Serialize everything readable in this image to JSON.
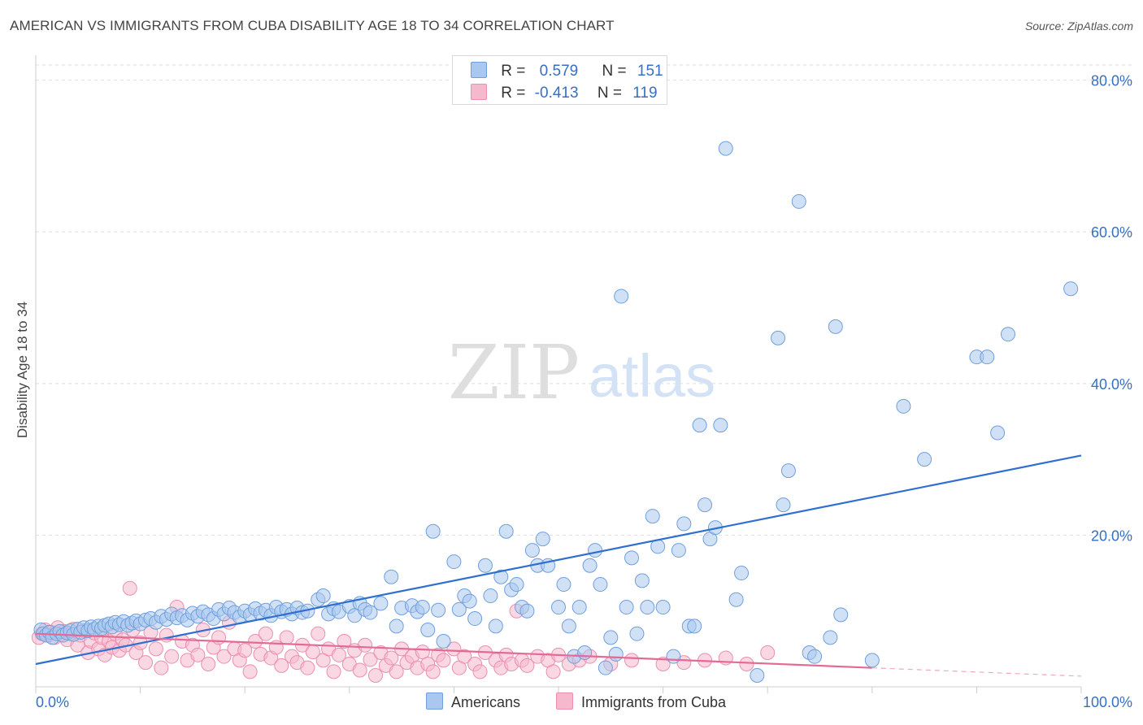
{
  "title": "AMERICAN VS IMMIGRANTS FROM CUBA DISABILITY AGE 18 TO 34 CORRELATION CHART",
  "source": "Source: ZipAtlas.com",
  "watermark": {
    "zip": "ZIP",
    "atlas": "atlas"
  },
  "stats": [
    {
      "r_label": "R =",
      "r_value": "0.579",
      "n_label": "N =",
      "n_value": "151"
    },
    {
      "r_label": "R =",
      "r_value": "-0.413",
      "n_label": "N =",
      "n_value": "119"
    }
  ],
  "legend": [
    {
      "label": "Americans"
    },
    {
      "label": "Immigrants from Cuba"
    }
  ],
  "colors": {
    "americans_fill": "#aac8ef",
    "americans_stroke": "#6f9fdd",
    "americans_line": "#2f6fcf",
    "cuba_fill": "#f6b8cc",
    "cuba_stroke": "#ea8fae",
    "cuba_line": "#e46a96",
    "axis_text": "#3570c4",
    "grid": "#dddddd"
  },
  "chart_data": {
    "type": "scatter",
    "title": "AMERICAN VS IMMIGRANTS FROM CUBA DISABILITY AGE 18 TO 34 CORRELATION CHART",
    "xlabel": "",
    "ylabel": "Disability Age 18 to 34",
    "xlim": [
      0,
      100
    ],
    "ylim": [
      0,
      82
    ],
    "x_tick_labels": [
      {
        "value": 0,
        "label": "0.0%"
      },
      {
        "value": 100,
        "label": "100.0%"
      }
    ],
    "y_tick_labels": [
      {
        "value": 20,
        "label": "20.0%"
      },
      {
        "value": 40,
        "label": "40.0%"
      },
      {
        "value": 60,
        "label": "60.0%"
      },
      {
        "value": 80,
        "label": "80.0%"
      }
    ],
    "grid": true,
    "legend_position": "bottom",
    "series": [
      {
        "name": "Americans",
        "r": 0.579,
        "n": 151,
        "trend": {
          "x": [
            0,
            100
          ],
          "y": [
            3.0,
            30.5
          ]
        },
        "points": [
          [
            0.5,
            7.5
          ],
          [
            0.7,
            7.0
          ],
          [
            1,
            6.8
          ],
          [
            1.3,
            7.2
          ],
          [
            1.6,
            6.5
          ],
          [
            2,
            7.0
          ],
          [
            2.3,
            7.3
          ],
          [
            2.6,
            6.8
          ],
          [
            3,
            7.1
          ],
          [
            3.3,
            7.4
          ],
          [
            3.6,
            6.9
          ],
          [
            4,
            7.6
          ],
          [
            4.3,
            7.2
          ],
          [
            4.6,
            7.8
          ],
          [
            5,
            7.4
          ],
          [
            5.3,
            7.9
          ],
          [
            5.6,
            7.6
          ],
          [
            6,
            8.0
          ],
          [
            6.3,
            7.7
          ],
          [
            6.6,
            8.1
          ],
          [
            7,
            8.3
          ],
          [
            7.3,
            7.9
          ],
          [
            7.6,
            8.5
          ],
          [
            8,
            8.2
          ],
          [
            8.4,
            8.6
          ],
          [
            8.8,
            8.1
          ],
          [
            9.2,
            8.4
          ],
          [
            9.6,
            8.7
          ],
          [
            10,
            8.3
          ],
          [
            10.5,
            8.8
          ],
          [
            11,
            9.0
          ],
          [
            11.5,
            8.5
          ],
          [
            12,
            9.3
          ],
          [
            12.5,
            8.9
          ],
          [
            13,
            9.6
          ],
          [
            13.5,
            9.1
          ],
          [
            14,
            9.4
          ],
          [
            14.5,
            8.8
          ],
          [
            15,
            9.7
          ],
          [
            15.5,
            9.3
          ],
          [
            16,
            9.9
          ],
          [
            16.5,
            9.5
          ],
          [
            17,
            9.0
          ],
          [
            17.5,
            10.2
          ],
          [
            18,
            9.6
          ],
          [
            18.5,
            10.4
          ],
          [
            19,
            9.8
          ],
          [
            19.5,
            9.2
          ],
          [
            20,
            10.0
          ],
          [
            20.5,
            9.5
          ],
          [
            21,
            10.3
          ],
          [
            21.5,
            9.7
          ],
          [
            22,
            10.1
          ],
          [
            22.5,
            9.4
          ],
          [
            23,
            10.5
          ],
          [
            23.5,
            9.9
          ],
          [
            24,
            10.2
          ],
          [
            24.5,
            9.6
          ],
          [
            25,
            10.4
          ],
          [
            25.5,
            9.8
          ],
          [
            26,
            10.0
          ],
          [
            27,
            11.5
          ],
          [
            27.5,
            12.0
          ],
          [
            28,
            9.6
          ],
          [
            28.5,
            10.3
          ],
          [
            29,
            9.9
          ],
          [
            30,
            10.6
          ],
          [
            30.5,
            9.4
          ],
          [
            31,
            11.0
          ],
          [
            31.5,
            10.2
          ],
          [
            32,
            9.8
          ],
          [
            33,
            11.0
          ],
          [
            34,
            14.5
          ],
          [
            34.5,
            8.0
          ],
          [
            35,
            10.4
          ],
          [
            36,
            10.7
          ],
          [
            36.5,
            9.9
          ],
          [
            37,
            10.5
          ],
          [
            37.5,
            7.5
          ],
          [
            38,
            20.5
          ],
          [
            38.5,
            10.1
          ],
          [
            39,
            6.0
          ],
          [
            40,
            16.5
          ],
          [
            40.5,
            10.2
          ],
          [
            41,
            12.0
          ],
          [
            41.5,
            11.3
          ],
          [
            42,
            9.0
          ],
          [
            43,
            16.0
          ],
          [
            43.5,
            12.0
          ],
          [
            44,
            8.0
          ],
          [
            44.5,
            14.5
          ],
          [
            45,
            20.5
          ],
          [
            45.5,
            12.8
          ],
          [
            46,
            13.5
          ],
          [
            46.5,
            10.5
          ],
          [
            47,
            10.0
          ],
          [
            47.5,
            18.0
          ],
          [
            48,
            16.0
          ],
          [
            48.5,
            19.5
          ],
          [
            49,
            16.0
          ],
          [
            50,
            10.5
          ],
          [
            50.5,
            13.5
          ],
          [
            51,
            8.0
          ],
          [
            51.5,
            4.0
          ],
          [
            52,
            10.5
          ],
          [
            52.5,
            4.5
          ],
          [
            53,
            16.0
          ],
          [
            53.5,
            18.0
          ],
          [
            54,
            13.5
          ],
          [
            54.5,
            2.5
          ],
          [
            55,
            6.5
          ],
          [
            55.5,
            4.3
          ],
          [
            56,
            51.5
          ],
          [
            56.5,
            10.5
          ],
          [
            57,
            17.0
          ],
          [
            57.5,
            7.0
          ],
          [
            58,
            14.0
          ],
          [
            58.5,
            10.5
          ],
          [
            59,
            22.5
          ],
          [
            59.5,
            18.5
          ],
          [
            60,
            10.5
          ],
          [
            61,
            4.0
          ],
          [
            61.5,
            18.0
          ],
          [
            62,
            21.5
          ],
          [
            62.5,
            8.0
          ],
          [
            63,
            8.0
          ],
          [
            63.5,
            34.5
          ],
          [
            64,
            24.0
          ],
          [
            64.5,
            19.5
          ],
          [
            65,
            21.0
          ],
          [
            65.5,
            34.5
          ],
          [
            66,
            71.0
          ],
          [
            67,
            11.5
          ],
          [
            67.5,
            15.0
          ],
          [
            69,
            1.5
          ],
          [
            71,
            46.0
          ],
          [
            71.5,
            24.0
          ],
          [
            72,
            28.5
          ],
          [
            73,
            64.0
          ],
          [
            74,
            4.5
          ],
          [
            74.5,
            4.0
          ],
          [
            76,
            6.5
          ],
          [
            76.5,
            47.5
          ],
          [
            77,
            9.5
          ],
          [
            80,
            3.5
          ],
          [
            83,
            37.0
          ],
          [
            85,
            30.0
          ],
          [
            90,
            43.5
          ],
          [
            91,
            43.5
          ],
          [
            92,
            33.5
          ],
          [
            93,
            46.5
          ],
          [
            99,
            52.5
          ]
        ]
      },
      {
        "name": "Immigrants from Cuba",
        "r": -0.413,
        "n": 119,
        "trend": {
          "x": [
            0,
            80
          ],
          "y": [
            7.0,
            2.5
          ]
        },
        "trend_dashed": {
          "x": [
            80,
            100
          ],
          "y": [
            2.5,
            1.4
          ]
        },
        "points": [
          [
            0.3,
            6.5
          ],
          [
            0.6,
            7.0
          ],
          [
            0.9,
            7.5
          ],
          [
            1.2,
            6.8
          ],
          [
            1.5,
            7.2
          ],
          [
            1.8,
            6.5
          ],
          [
            2.1,
            7.8
          ],
          [
            2.4,
            6.9
          ],
          [
            2.7,
            7.3
          ],
          [
            3,
            6.2
          ],
          [
            3.3,
            7.0
          ],
          [
            3.6,
            7.6
          ],
          [
            4,
            5.5
          ],
          [
            4.3,
            6.8
          ],
          [
            4.6,
            7.4
          ],
          [
            5,
            4.5
          ],
          [
            5.3,
            6.0
          ],
          [
            5.6,
            7.1
          ],
          [
            6,
            5.0
          ],
          [
            6.3,
            6.5
          ],
          [
            6.6,
            4.2
          ],
          [
            7,
            6.0
          ],
          [
            7.3,
            5.2
          ],
          [
            7.6,
            7.0
          ],
          [
            8,
            4.8
          ],
          [
            8.3,
            6.2
          ],
          [
            8.6,
            5.5
          ],
          [
            9,
            13.0
          ],
          [
            9.3,
            7.5
          ],
          [
            9.6,
            4.5
          ],
          [
            10,
            5.8
          ],
          [
            10.5,
            3.2
          ],
          [
            11,
            7.2
          ],
          [
            11.5,
            5.0
          ],
          [
            12,
            2.5
          ],
          [
            12.5,
            6.8
          ],
          [
            13,
            4.0
          ],
          [
            13.5,
            10.5
          ],
          [
            14,
            6.0
          ],
          [
            14.5,
            3.5
          ],
          [
            15,
            5.5
          ],
          [
            15.5,
            4.2
          ],
          [
            16,
            7.5
          ],
          [
            16.5,
            3.0
          ],
          [
            17,
            5.2
          ],
          [
            17.5,
            6.5
          ],
          [
            18,
            4.0
          ],
          [
            18.5,
            8.5
          ],
          [
            19,
            5.0
          ],
          [
            19.5,
            3.5
          ],
          [
            20,
            4.8
          ],
          [
            20.5,
            2.0
          ],
          [
            21,
            6.0
          ],
          [
            21.5,
            4.3
          ],
          [
            22,
            7.0
          ],
          [
            22.5,
            3.8
          ],
          [
            23,
            5.2
          ],
          [
            23.5,
            2.8
          ],
          [
            24,
            6.5
          ],
          [
            24.5,
            4.0
          ],
          [
            25,
            3.2
          ],
          [
            25.5,
            5.5
          ],
          [
            26,
            2.5
          ],
          [
            26.5,
            4.6
          ],
          [
            27,
            7.0
          ],
          [
            27.5,
            3.5
          ],
          [
            28,
            5.0
          ],
          [
            28.5,
            2.0
          ],
          [
            29,
            4.2
          ],
          [
            29.5,
            6.0
          ],
          [
            30,
            3.0
          ],
          [
            30.5,
            4.8
          ],
          [
            31,
            2.2
          ],
          [
            31.5,
            5.5
          ],
          [
            32,
            3.6
          ],
          [
            32.5,
            1.5
          ],
          [
            33,
            4.5
          ],
          [
            33.5,
            2.8
          ],
          [
            34,
            3.8
          ],
          [
            34.5,
            2.0
          ],
          [
            35,
            5.0
          ],
          [
            35.5,
            3.2
          ],
          [
            36,
            4.0
          ],
          [
            36.5,
            2.5
          ],
          [
            37,
            4.6
          ],
          [
            37.5,
            3.0
          ],
          [
            38,
            2.0
          ],
          [
            38.5,
            4.2
          ],
          [
            39,
            3.5
          ],
          [
            40,
            5.0
          ],
          [
            40.5,
            2.5
          ],
          [
            41,
            4.0
          ],
          [
            42,
            3.0
          ],
          [
            42.5,
            2.0
          ],
          [
            43,
            4.5
          ],
          [
            44,
            3.5
          ],
          [
            44.5,
            2.5
          ],
          [
            45,
            4.2
          ],
          [
            45.5,
            3.0
          ],
          [
            46,
            10.0
          ],
          [
            46.5,
            3.5
          ],
          [
            47,
            2.8
          ],
          [
            48,
            4.0
          ],
          [
            49,
            3.5
          ],
          [
            49.5,
            2.0
          ],
          [
            50,
            4.2
          ],
          [
            51,
            3.0
          ],
          [
            52,
            3.5
          ],
          [
            53,
            4.0
          ],
          [
            55,
            3.0
          ],
          [
            57,
            3.5
          ],
          [
            60,
            3.0
          ],
          [
            62,
            3.2
          ],
          [
            64,
            3.5
          ],
          [
            66,
            3.8
          ],
          [
            68,
            3.0
          ],
          [
            70,
            4.5
          ]
        ]
      }
    ]
  }
}
